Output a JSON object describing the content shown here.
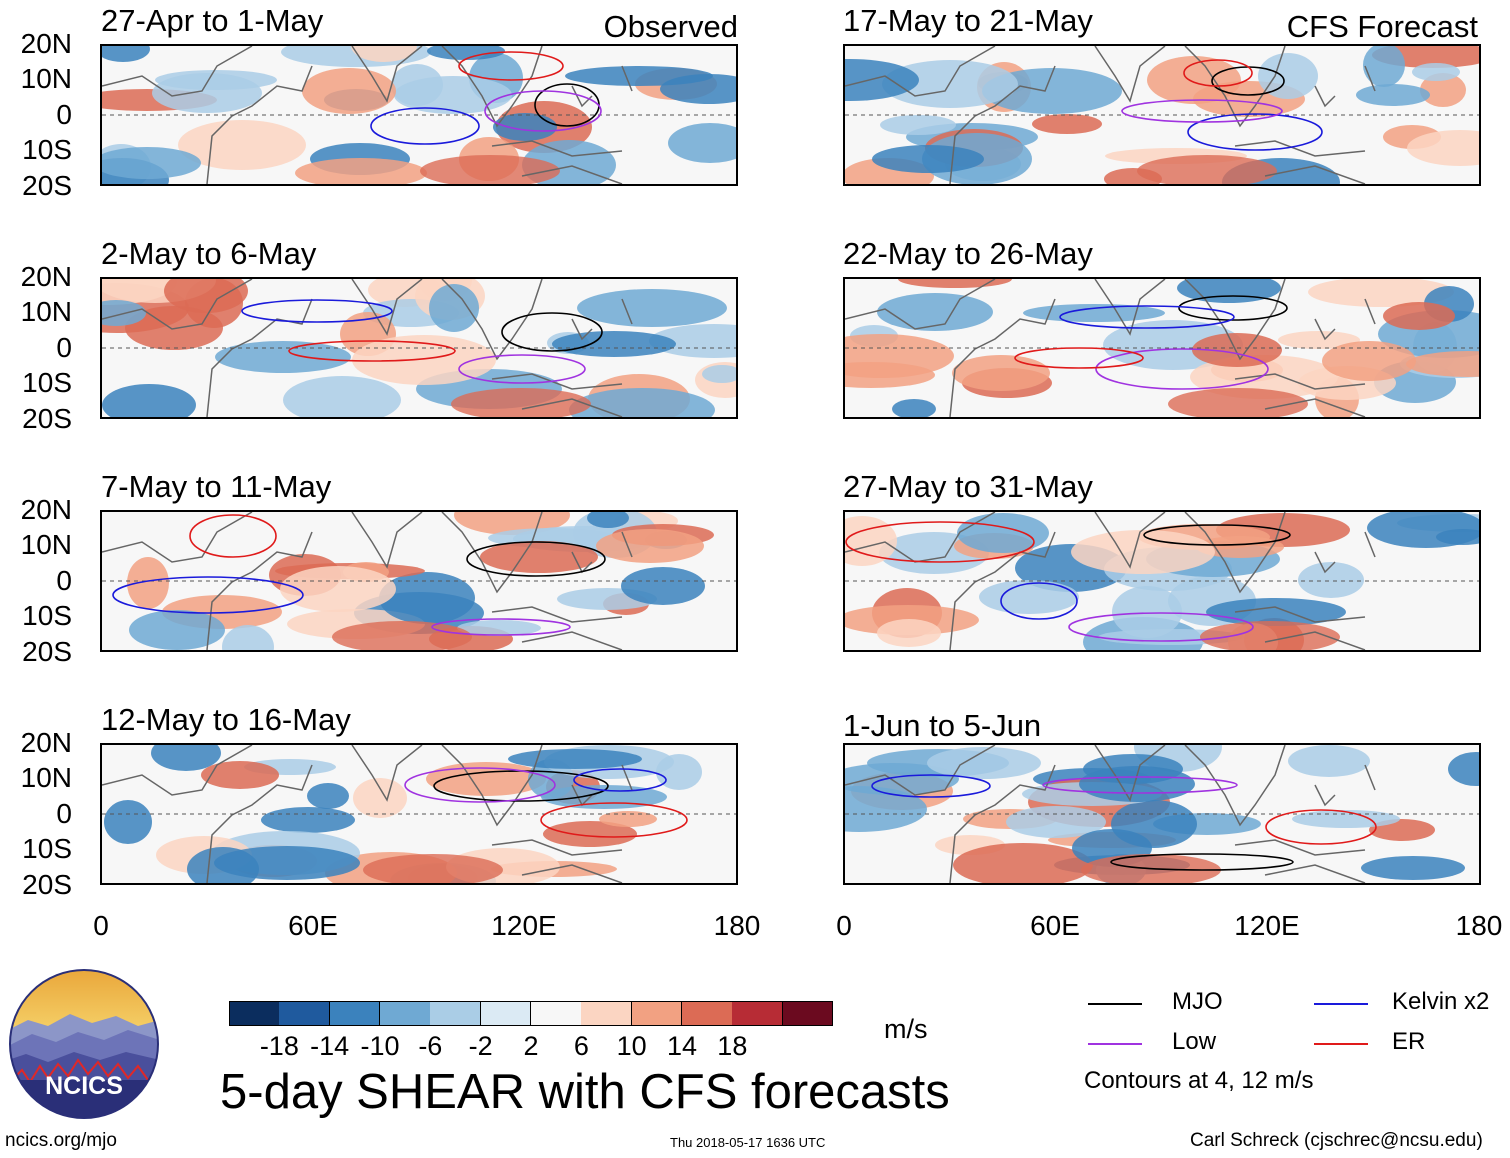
{
  "chart_data": {
    "type": "heatmap",
    "title": "5-day SHEAR with CFS forecasts",
    "units": "m/s",
    "column_titles": {
      "left": "Observed",
      "right": "CFS Forecast"
    },
    "y_ticks": [
      "20N",
      "10N",
      "0",
      "10S",
      "20S"
    ],
    "x_ticks": [
      "0",
      "60E",
      "120E",
      "180"
    ],
    "panels": [
      {
        "period": "27-Apr to 1-May",
        "column": "left"
      },
      {
        "period": "2-May to 6-May",
        "column": "left"
      },
      {
        "period": "7-May to 11-May",
        "column": "left"
      },
      {
        "period": "12-May to 16-May",
        "column": "left"
      },
      {
        "period": "17-May to 21-May",
        "column": "right"
      },
      {
        "period": "22-May to 26-May",
        "column": "right"
      },
      {
        "period": "27-May to 31-May",
        "column": "right"
      },
      {
        "period": "1-Jun to 5-Jun",
        "column": "right"
      }
    ],
    "colorbar": {
      "labels": [
        "-18",
        "-14",
        "-10",
        "-6",
        "-2",
        "2",
        "6",
        "10",
        "14",
        "18"
      ],
      "colors": [
        "#0b2d5e",
        "#1f5a9e",
        "#3b82bd",
        "#6fa9d3",
        "#aacde6",
        "#dbeaf4",
        "#f7f7f7",
        "#fbd5c2",
        "#f2a182",
        "#dc6b55",
        "#b72c35",
        "#6b0a1f"
      ]
    },
    "legend": [
      {
        "label": "MJO",
        "color": "#000000"
      },
      {
        "label": "Kelvin x2",
        "color": "#1a1adb"
      },
      {
        "label": "Low",
        "color": "#a033e0"
      },
      {
        "label": "ER",
        "color": "#e01a1a"
      }
    ],
    "legend_note": "Contours at 4, 12 m/s"
  },
  "footer": {
    "left": "ncics.org/mjo",
    "center": "Thu 2018-05-17 1636 UTC",
    "right": "Carl Schreck (cjschrec@ncsu.edu)"
  },
  "logo": {
    "text": "NCICS"
  }
}
